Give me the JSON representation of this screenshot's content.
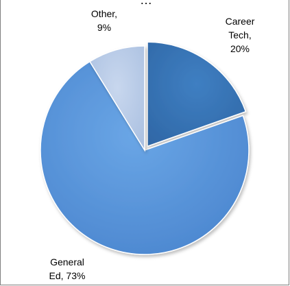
{
  "title": "…",
  "chart_data": {
    "type": "pie",
    "title": "…",
    "slices": [
      {
        "label_lines": [
          "Career",
          "Tech,",
          "20%"
        ],
        "value": 20,
        "color": "#3a78b8"
      },
      {
        "label_lines": [
          "General",
          "Ed, 73%"
        ],
        "value": 73,
        "color": "#4f8fd6"
      },
      {
        "label_lines": [
          "Other,",
          "9%"
        ],
        "value": 9,
        "color": "#b7c9e6"
      }
    ],
    "start": "12 o'clock",
    "direction": "clockwise",
    "legend": "none"
  }
}
